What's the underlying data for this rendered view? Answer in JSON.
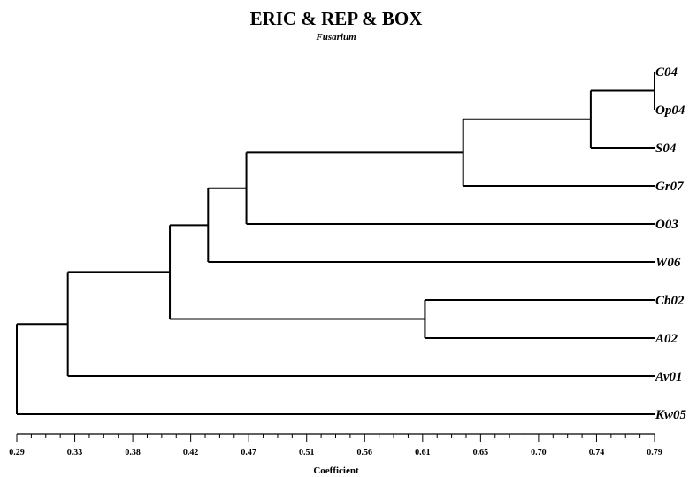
{
  "title": "ERIC & REP & BOX",
  "subtitle": "Fusarium",
  "chart_data": {
    "type": "dendrogram",
    "xlabel": "Coefficient",
    "xlim": [
      0.29,
      0.79
    ],
    "tick_labels": [
      "0.29",
      "0.33",
      "0.38",
      "0.42",
      "0.47",
      "0.51",
      "0.56",
      "0.61",
      "0.65",
      "0.70",
      "0.74",
      "0.79"
    ],
    "leaves": [
      "C04",
      "Op04",
      "S04",
      "Gr07",
      "O03",
      "W06",
      "Cb02",
      "A02",
      "Av01",
      "Kw05"
    ],
    "merges": [
      {
        "children": [
          "C04",
          "Op04"
        ],
        "similarity": 0.79
      },
      {
        "children": [
          "C04+Op04",
          "S04"
        ],
        "similarity": 0.74
      },
      {
        "children": [
          "C04+Op04+S04",
          "Gr07"
        ],
        "similarity": 0.64
      },
      {
        "children": [
          "C04..Gr07",
          "O03"
        ],
        "similarity": 0.47
      },
      {
        "children": [
          "C04..O03",
          "W06"
        ],
        "similarity": 0.44
      },
      {
        "children": [
          "Cb02",
          "A02"
        ],
        "similarity": 0.61
      },
      {
        "children": [
          "C04..W06",
          "Cb02+A02"
        ],
        "similarity": 0.41
      },
      {
        "children": [
          "C04..A02",
          "Av01"
        ],
        "similarity": 0.33
      },
      {
        "children": [
          "C04..Av01",
          "Kw05"
        ],
        "similarity": 0.29
      }
    ]
  }
}
